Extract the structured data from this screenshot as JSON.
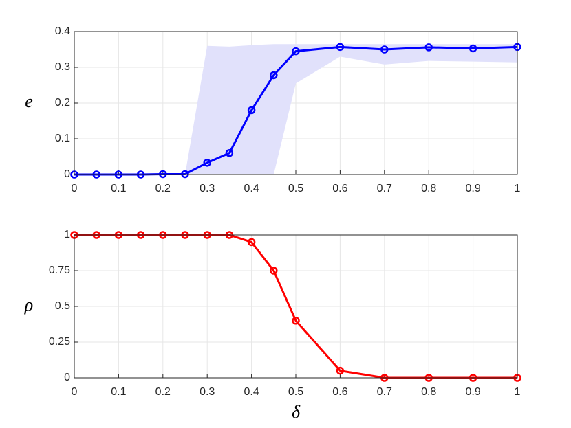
{
  "chart_data": [
    {
      "type": "line",
      "x": [
        0,
        0.05,
        0.1,
        0.15,
        0.2,
        0.25,
        0.3,
        0.35,
        0.4,
        0.45,
        0.5,
        0.6,
        0.7,
        0.8,
        0.9,
        1
      ],
      "series": [
        {
          "color": "#0000ff",
          "values": [
            0,
            0,
            0,
            0,
            0.001,
            0.001,
            0.033,
            0.06,
            0.18,
            0.278,
            0.345,
            0.357,
            0.35,
            0.356,
            0.353,
            0.357
          ]
        }
      ],
      "band": {
        "color": "#e1e1fb",
        "lower": [
          0,
          0,
          0,
          0,
          0,
          0,
          0,
          0,
          0,
          0,
          0.255,
          0.33,
          0.308,
          0.318,
          0.316,
          0.314
        ],
        "upper": [
          0,
          0,
          0,
          0,
          0,
          0,
          0.36,
          0.358,
          0.362,
          0.365,
          0.365,
          0.365,
          0.365,
          0.365,
          0.365,
          0.365
        ]
      },
      "ylabel": "e",
      "xlim": [
        0,
        1
      ],
      "xticks": [
        0,
        0.1,
        0.2,
        0.3,
        0.4,
        0.5,
        0.6,
        0.7,
        0.8,
        0.9,
        1
      ],
      "ylim": [
        0,
        0.4
      ],
      "yticks": [
        0,
        0.1,
        0.2,
        0.3,
        0.4
      ],
      "grid": true
    },
    {
      "type": "line",
      "x": [
        0,
        0.05,
        0.1,
        0.15,
        0.2,
        0.25,
        0.3,
        0.35,
        0.4,
        0.45,
        0.5,
        0.6,
        0.7,
        0.8,
        0.9,
        1
      ],
      "series": [
        {
          "color": "#ff0000",
          "values": [
            1,
            1,
            1,
            1,
            1,
            1,
            1,
            1,
            0.95,
            0.75,
            0.4,
            0.05,
            0,
            0,
            0,
            0
          ]
        }
      ],
      "ylabel": "ρ",
      "xlabel": "δ",
      "xlim": [
        0,
        1
      ],
      "xticks": [
        0,
        0.1,
        0.2,
        0.3,
        0.4,
        0.5,
        0.6,
        0.7,
        0.8,
        0.9,
        1
      ],
      "ylim": [
        0,
        1
      ],
      "yticks": [
        0,
        0.25,
        0.5,
        0.75,
        1
      ],
      "grid": true
    }
  ]
}
